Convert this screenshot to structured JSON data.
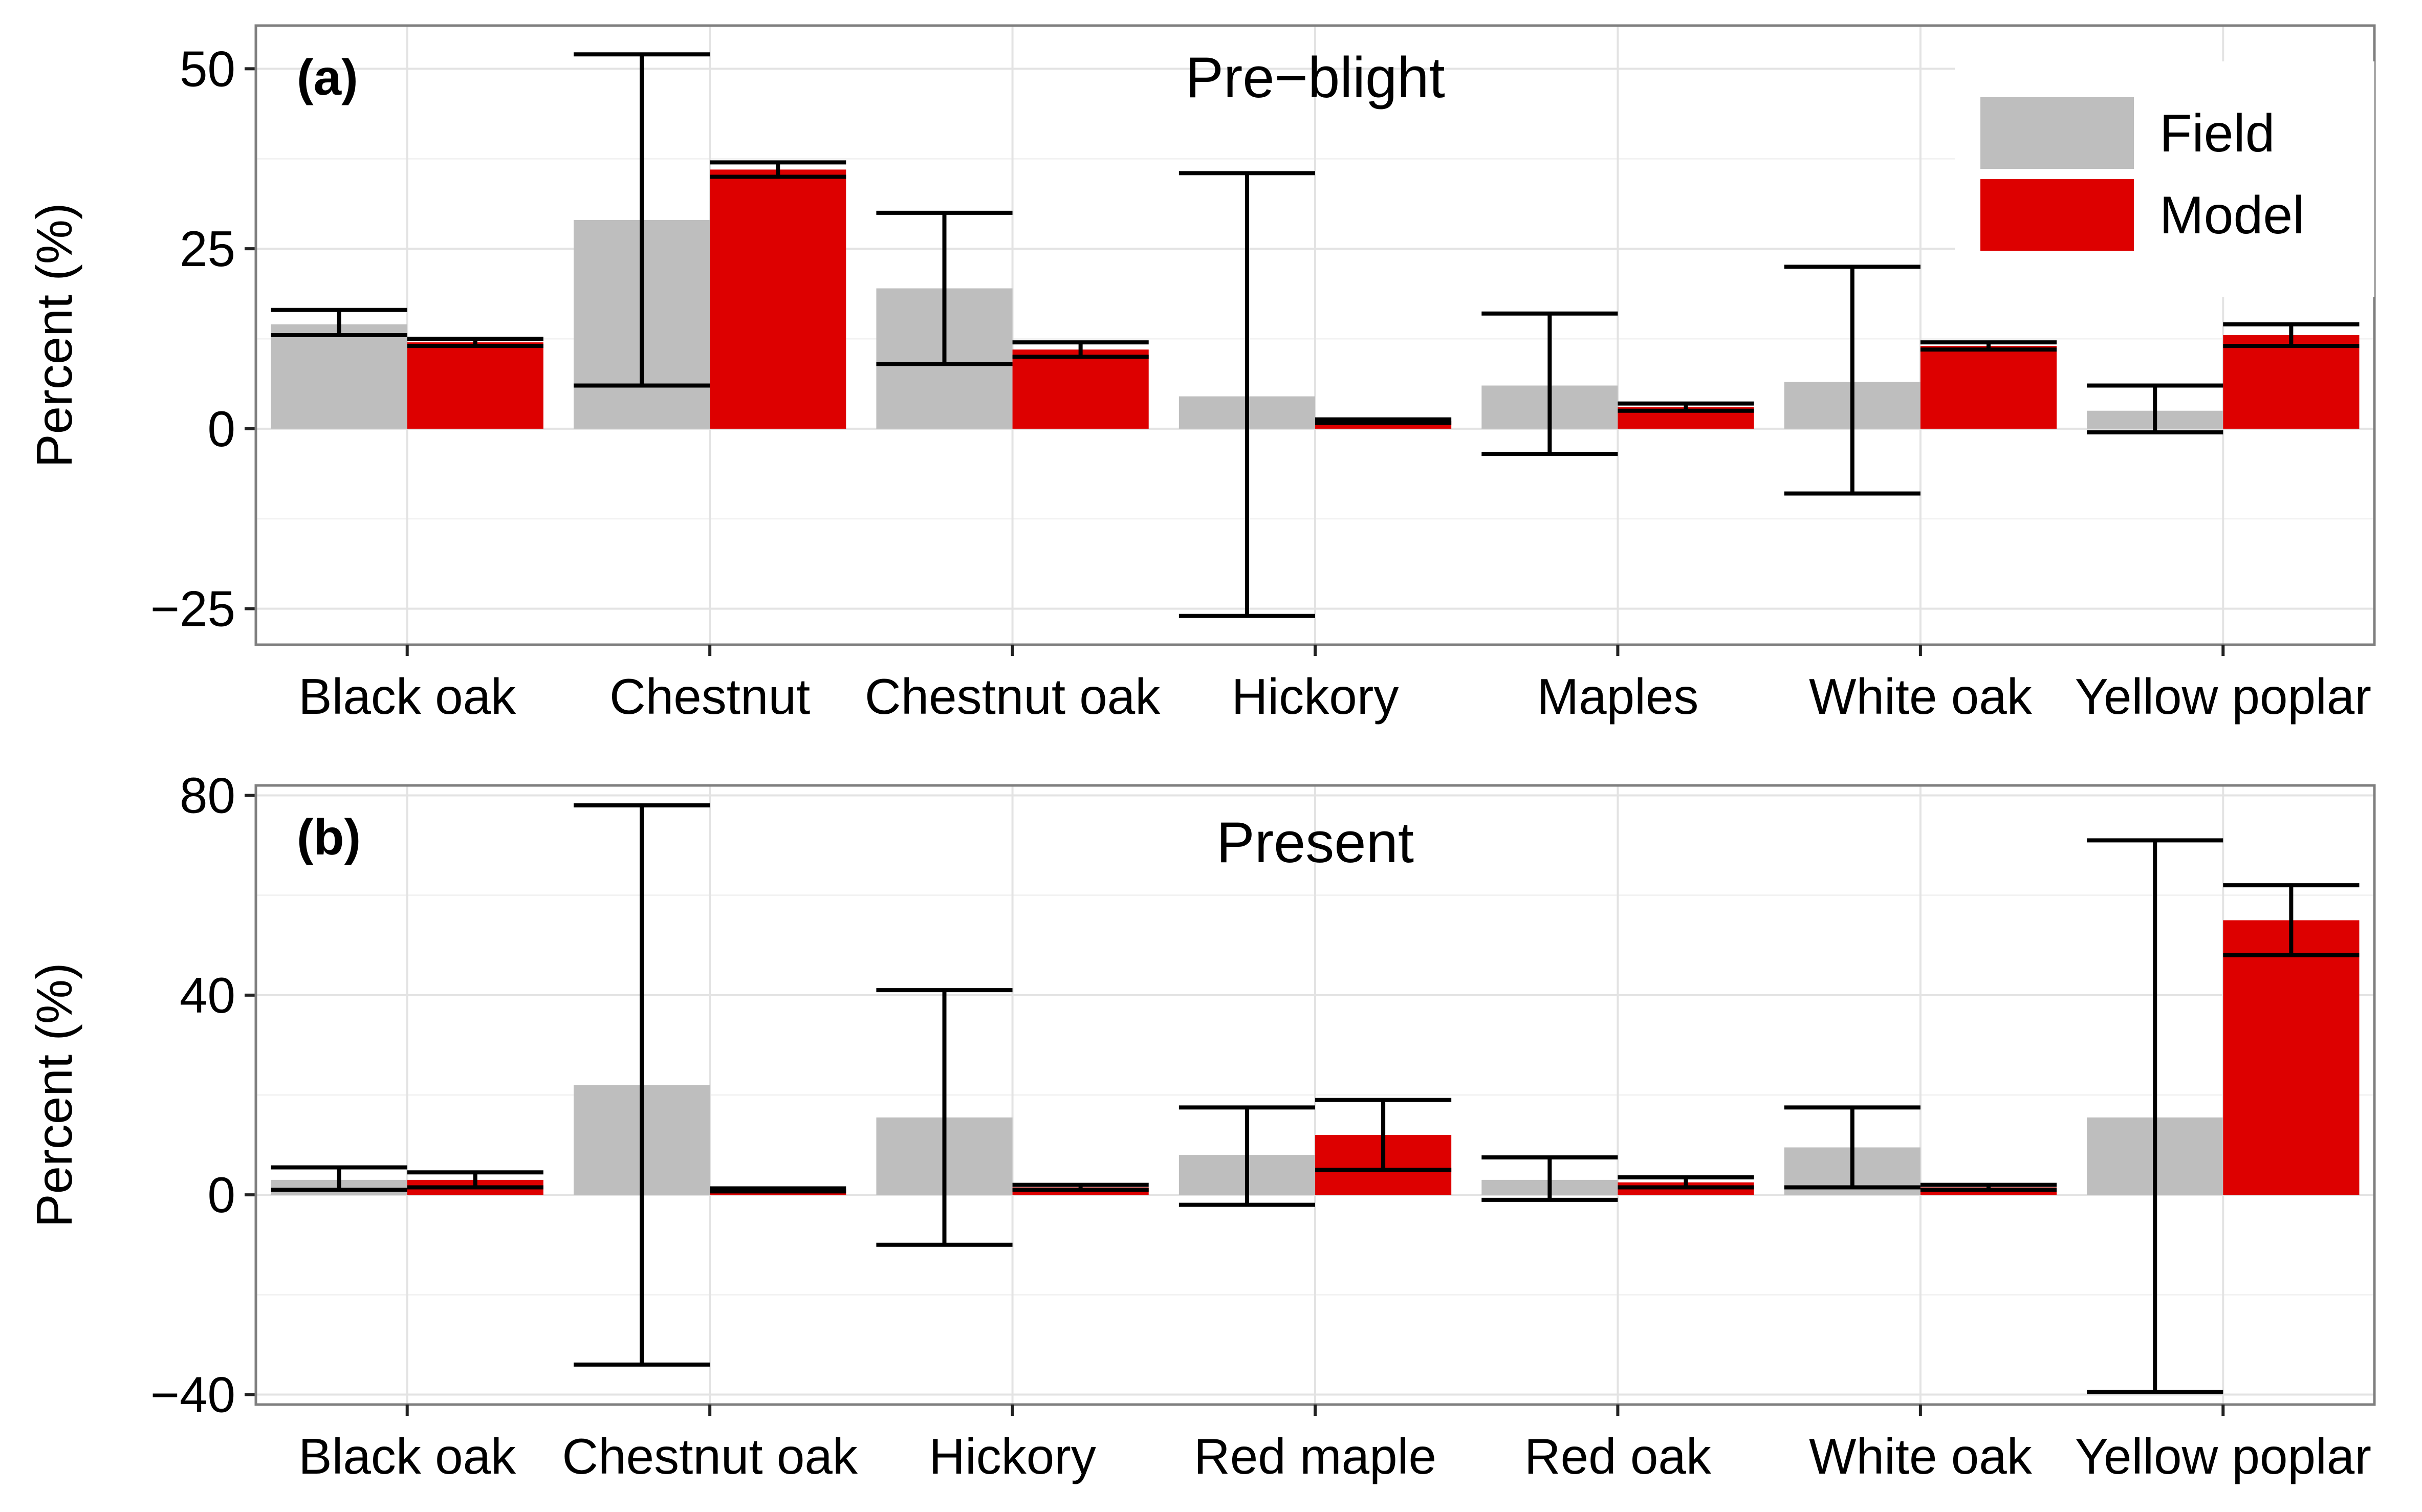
{
  "chart_data": [
    {
      "type": "bar",
      "panel_label": "(a)",
      "title": "Pre−blight",
      "ylabel": "Percent (%)",
      "ylim": [
        -30,
        56
      ],
      "yticks": [
        50,
        25,
        0,
        -25
      ],
      "ytick_labels": [
        "50",
        "25",
        "0",
        "−25"
      ],
      "categories": [
        "Black oak",
        "Chestnut",
        "Chestnut oak",
        "Hickory",
        "Maples",
        "White oak",
        "Yellow poplar"
      ],
      "series": [
        {
          "name": "Field",
          "color": "#bebebe",
          "values": [
            14.5,
            29,
            19.5,
            4.5,
            6,
            6.5,
            2.5
          ],
          "err_low": [
            13,
            6,
            9,
            -26,
            -3.5,
            -9,
            -0.5
          ],
          "err_high": [
            16.5,
            52,
            30,
            35.5,
            16,
            22.5,
            6
          ]
        },
        {
          "name": "Model",
          "color": "#dd0000",
          "values": [
            12,
            36,
            11,
            1,
            3,
            11.5,
            13
          ],
          "err_low": [
            11.5,
            35,
            10,
            0.8,
            2.5,
            11,
            11.5
          ],
          "err_high": [
            12.5,
            37,
            12,
            1.3,
            3.5,
            12,
            14.5
          ]
        }
      ],
      "grid": true,
      "legend": {
        "position": "top-right",
        "entries": [
          "Field",
          "Model"
        ]
      }
    },
    {
      "type": "bar",
      "panel_label": "(b)",
      "title": "Present",
      "ylabel": "Percent (%)",
      "ylim": [
        -42,
        82
      ],
      "yticks": [
        80,
        40,
        0,
        -40
      ],
      "ytick_labels": [
        "80",
        "40",
        "0",
        "−40"
      ],
      "categories": [
        "Black oak",
        "Chestnut oak",
        "Hickory",
        "Red maple",
        "Red oak",
        "White oak",
        "Yellow poplar"
      ],
      "series": [
        {
          "name": "Field",
          "color": "#bebebe",
          "values": [
            3,
            22,
            15.5,
            8,
            3,
            9.5,
            15.5
          ],
          "err_low": [
            1,
            -34,
            -10,
            -2,
            -1,
            1.5,
            -39.5
          ],
          "err_high": [
            5.5,
            78,
            41,
            17.5,
            7.5,
            17.5,
            71
          ]
        },
        {
          "name": "Model",
          "color": "#dd0000",
          "values": [
            3,
            1,
            1.5,
            12,
            2.5,
            1.5,
            55
          ],
          "err_low": [
            1.5,
            0.7,
            1,
            5,
            1.5,
            1,
            48
          ],
          "err_high": [
            4.5,
            1.3,
            2,
            19,
            3.5,
            2,
            62
          ]
        }
      ],
      "grid": true,
      "legend": null
    }
  ]
}
